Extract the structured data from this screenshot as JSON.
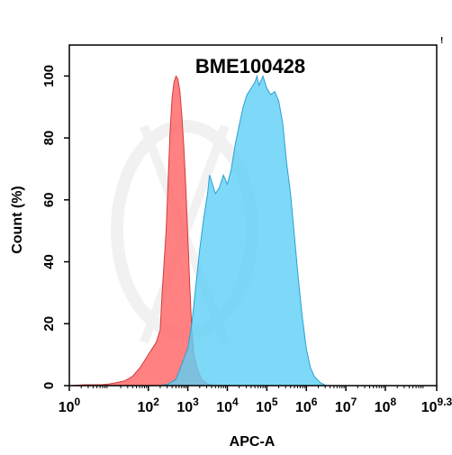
{
  "chart_data": {
    "type": "area",
    "title": "BME100428",
    "xlabel": "APC-A",
    "ylabel": "Count  (%)",
    "x_scale": "log10",
    "xlim": [
      0,
      9.3
    ],
    "ylim": [
      0,
      110
    ],
    "x_ticks": [
      {
        "exp": 0,
        "base": "10",
        "sup": "0"
      },
      {
        "exp": 2,
        "base": "10",
        "sup": "2"
      },
      {
        "exp": 3,
        "base": "10",
        "sup": "3"
      },
      {
        "exp": 4,
        "base": "10",
        "sup": "4"
      },
      {
        "exp": 5,
        "base": "10",
        "sup": "5"
      },
      {
        "exp": 6,
        "base": "10",
        "sup": "6"
      },
      {
        "exp": 7,
        "base": "10",
        "sup": "7"
      },
      {
        "exp": 8,
        "base": "10",
        "sup": "8"
      },
      {
        "exp": 9.3,
        "base": "10",
        "sup": "9.3"
      }
    ],
    "y_ticks": [
      0,
      20,
      40,
      60,
      80,
      100
    ],
    "grid": false,
    "series": [
      {
        "color": "#ff6b6b",
        "stroke": "#d23c3c",
        "opacity": 0.85,
        "points": [
          [
            0,
            0
          ],
          [
            0.4,
            0.3
          ],
          [
            0.8,
            0.3
          ],
          [
            1.0,
            0.5
          ],
          [
            1.2,
            1
          ],
          [
            1.4,
            1.5
          ],
          [
            1.6,
            3
          ],
          [
            1.8,
            6
          ],
          [
            1.9,
            8
          ],
          [
            2.0,
            10
          ],
          [
            2.1,
            12
          ],
          [
            2.2,
            14
          ],
          [
            2.3,
            18
          ],
          [
            2.35,
            30
          ],
          [
            2.4,
            40
          ],
          [
            2.45,
            50
          ],
          [
            2.5,
            66
          ],
          [
            2.55,
            82
          ],
          [
            2.6,
            93
          ],
          [
            2.65,
            98
          ],
          [
            2.7,
            100
          ],
          [
            2.75,
            99
          ],
          [
            2.8,
            95
          ],
          [
            2.85,
            87
          ],
          [
            2.9,
            77
          ],
          [
            2.95,
            64
          ],
          [
            3.0,
            48
          ],
          [
            3.05,
            32
          ],
          [
            3.1,
            18
          ],
          [
            3.15,
            10
          ],
          [
            3.25,
            5
          ],
          [
            3.35,
            2
          ],
          [
            3.5,
            0.5
          ],
          [
            3.7,
            0
          ]
        ]
      },
      {
        "color": "#5ccff5",
        "stroke": "#2ba0d4",
        "opacity": 0.8,
        "points": [
          [
            2.3,
            0
          ],
          [
            2.5,
            0.5
          ],
          [
            2.7,
            2
          ],
          [
            2.85,
            7
          ],
          [
            3.0,
            12
          ],
          [
            3.1,
            20
          ],
          [
            3.2,
            32
          ],
          [
            3.3,
            44
          ],
          [
            3.4,
            54
          ],
          [
            3.5,
            62
          ],
          [
            3.55,
            68
          ],
          [
            3.6,
            66
          ],
          [
            3.7,
            62
          ],
          [
            3.8,
            64
          ],
          [
            3.9,
            68
          ],
          [
            4.0,
            65
          ],
          [
            4.1,
            70
          ],
          [
            4.2,
            78
          ],
          [
            4.3,
            84
          ],
          [
            4.4,
            90
          ],
          [
            4.5,
            94
          ],
          [
            4.6,
            96
          ],
          [
            4.7,
            98
          ],
          [
            4.75,
            100
          ],
          [
            4.8,
            97
          ],
          [
            4.9,
            100
          ],
          [
            5.0,
            96
          ],
          [
            5.1,
            94
          ],
          [
            5.2,
            95
          ],
          [
            5.3,
            92
          ],
          [
            5.4,
            85
          ],
          [
            5.5,
            72
          ],
          [
            5.6,
            62
          ],
          [
            5.7,
            48
          ],
          [
            5.8,
            34
          ],
          [
            5.9,
            22
          ],
          [
            6.0,
            12
          ],
          [
            6.1,
            6
          ],
          [
            6.2,
            3
          ],
          [
            6.35,
            1
          ],
          [
            6.5,
            0
          ]
        ]
      }
    ]
  },
  "colors": {
    "watermark": "#e3e3e3",
    "axis": "#000000"
  },
  "corner_mark": "!"
}
